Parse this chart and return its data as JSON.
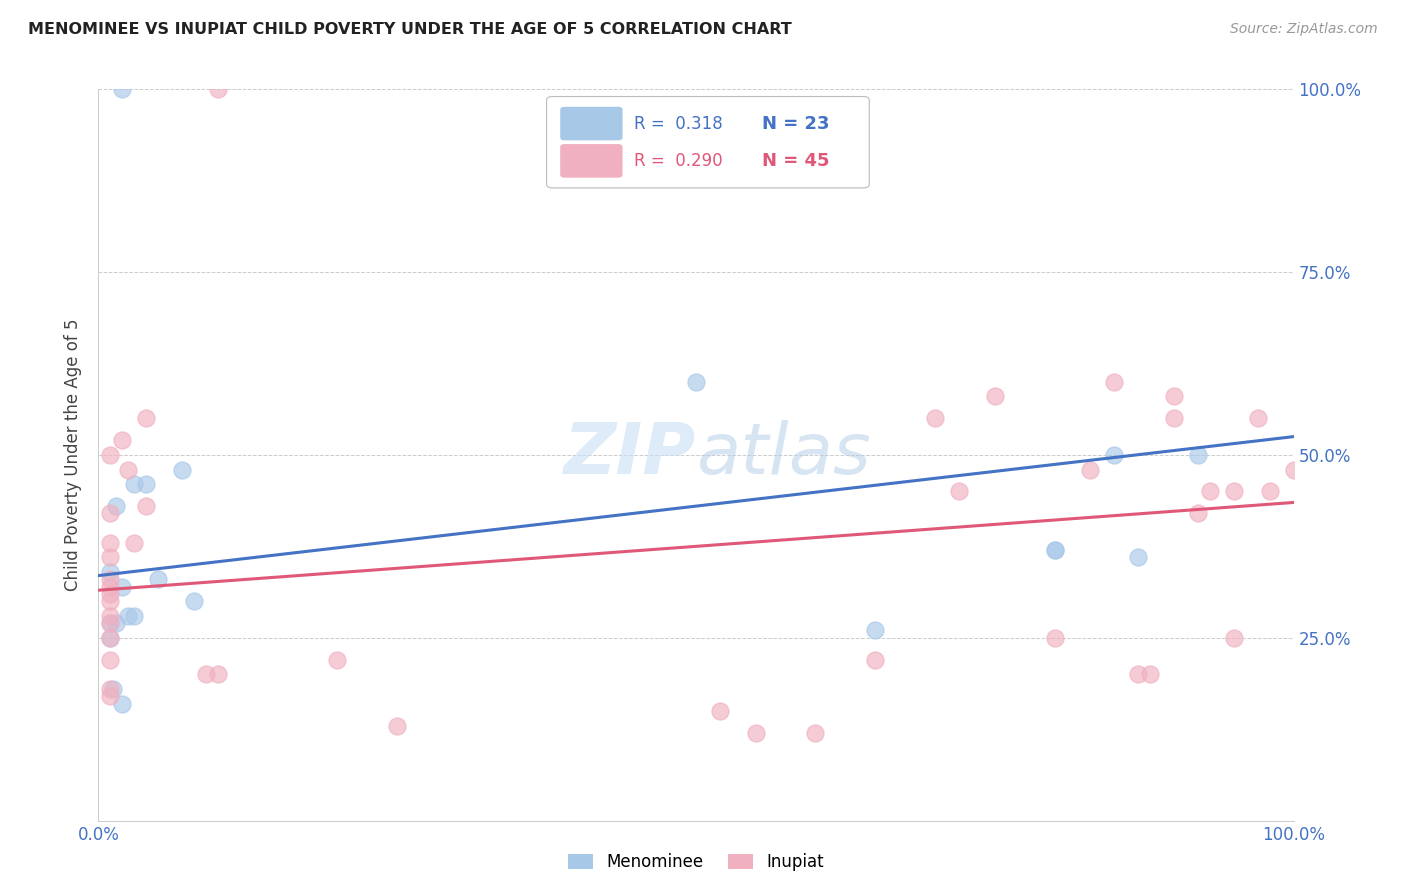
{
  "title": "MENOMINEE VS INUPIAT CHILD POVERTY UNDER THE AGE OF 5 CORRELATION CHART",
  "source": "Source: ZipAtlas.com",
  "ylabel": "Child Poverty Under the Age of 5",
  "xlim": [
    0,
    1
  ],
  "ylim": [
    0,
    1
  ],
  "ytick_labels": [
    "25.0%",
    "50.0%",
    "75.0%",
    "100.0%"
  ],
  "ytick_positions": [
    0.25,
    0.5,
    0.75,
    1.0
  ],
  "menominee_color": "#a8c8e8",
  "inupiat_color": "#f0b0c0",
  "menominee_line_color": "#4472c4",
  "inupiat_line_color": "#e05878",
  "legend_R_menominee": "0.318",
  "legend_N_menominee": "23",
  "legend_R_inupiat": "0.290",
  "legend_N_inupiat": "45",
  "background_color": "#ffffff",
  "menominee_x": [
    0.02,
    0.03,
    0.04,
    0.015,
    0.01,
    0.02,
    0.025,
    0.01,
    0.015,
    0.01,
    0.012,
    0.02,
    0.07,
    0.05,
    0.03,
    0.08,
    0.5,
    0.65,
    0.8,
    0.85,
    0.87,
    0.92,
    0.8
  ],
  "menominee_y": [
    1.0,
    0.46,
    0.46,
    0.43,
    0.34,
    0.32,
    0.28,
    0.27,
    0.27,
    0.25,
    0.18,
    0.16,
    0.48,
    0.33,
    0.28,
    0.3,
    0.6,
    0.26,
    0.37,
    0.5,
    0.36,
    0.5,
    0.37
  ],
  "inupiat_x": [
    0.1,
    0.01,
    0.01,
    0.01,
    0.01,
    0.01,
    0.01,
    0.01,
    0.01,
    0.01,
    0.01,
    0.01,
    0.01,
    0.01,
    0.01,
    0.02,
    0.025,
    0.03,
    0.04,
    0.04,
    0.09,
    0.1,
    0.2,
    0.25,
    0.52,
    0.55,
    0.6,
    0.65,
    0.7,
    0.72,
    0.75,
    0.8,
    0.83,
    0.85,
    0.87,
    0.88,
    0.9,
    0.9,
    0.92,
    0.93,
    0.95,
    0.95,
    0.97,
    0.98,
    1.0
  ],
  "inupiat_y": [
    1.0,
    0.5,
    0.42,
    0.38,
    0.36,
    0.33,
    0.32,
    0.31,
    0.3,
    0.28,
    0.27,
    0.25,
    0.22,
    0.18,
    0.17,
    0.52,
    0.48,
    0.38,
    0.55,
    0.43,
    0.2,
    0.2,
    0.22,
    0.13,
    0.15,
    0.12,
    0.12,
    0.22,
    0.55,
    0.45,
    0.58,
    0.25,
    0.48,
    0.6,
    0.2,
    0.2,
    0.58,
    0.55,
    0.42,
    0.45,
    0.45,
    0.25,
    0.55,
    0.45,
    0.48
  ],
  "menominee_line_x0": 0.0,
  "menominee_line_x1": 1.0,
  "menominee_line_y0": 0.335,
  "menominee_line_y1": 0.525,
  "inupiat_line_x0": 0.0,
  "inupiat_line_x1": 1.0,
  "inupiat_line_y0": 0.315,
  "inupiat_line_y1": 0.435
}
